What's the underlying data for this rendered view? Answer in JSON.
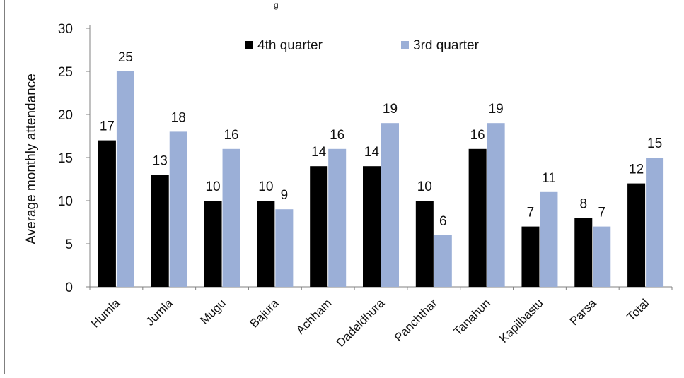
{
  "chart_data": {
    "type": "bar",
    "title": "",
    "xlabel": "",
    "ylabel": "Average monthly attendance",
    "ylim": [
      0,
      30
    ],
    "yticks": [
      0,
      5,
      10,
      15,
      20,
      25,
      30
    ],
    "categories": [
      "Humla",
      "Jumla",
      "Mugu",
      "Bajura",
      "Achham",
      "Dadeldhura",
      "Panchthar",
      "Tanahun",
      "Kapilbastu",
      "Parsa",
      "Total"
    ],
    "series": [
      {
        "name": "4th quarter",
        "color": "#000000",
        "values": [
          17,
          13,
          10,
          10,
          14,
          14,
          10,
          16,
          7,
          8,
          12
        ]
      },
      {
        "name": "3rd quarter",
        "color": "#9bafd7",
        "values": [
          25,
          18,
          16,
          9,
          16,
          19,
          6,
          19,
          11,
          7,
          15
        ]
      }
    ],
    "legend_position": "top-center",
    "grid": false,
    "top_clipped_text": "g"
  }
}
